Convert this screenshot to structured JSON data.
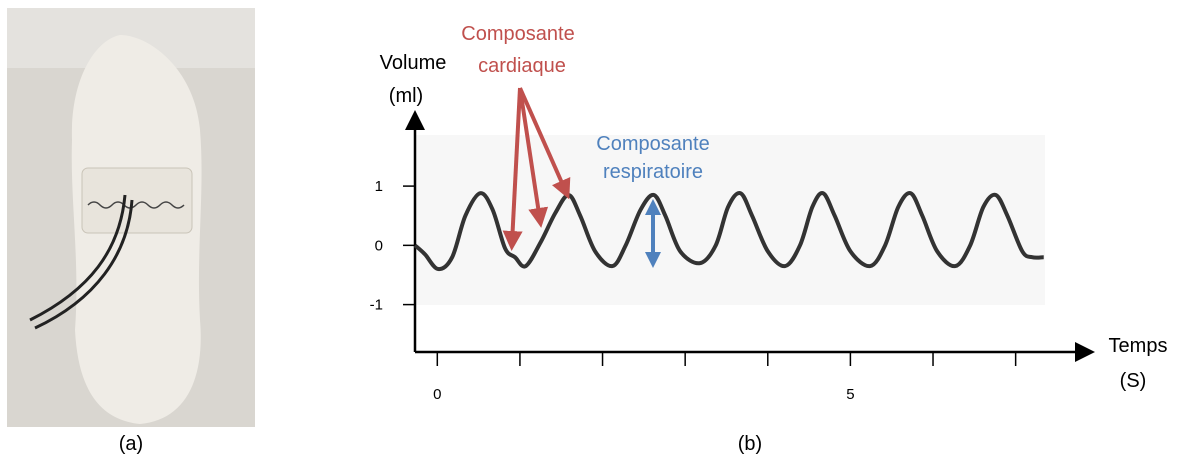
{
  "panel_labels": [
    "(a)",
    "(b)"
  ],
  "chart_data": {
    "type": "line",
    "y_label": [
      "Volume",
      "(ml)"
    ],
    "x_label": [
      "Temps",
      "(S)"
    ],
    "annotations": [
      {
        "text": [
          "Composante",
          "cardiaque"
        ],
        "color": "#c0504d"
      },
      {
        "text": [
          "Composante",
          "respiratoire"
        ],
        "color": "#4f81bd"
      }
    ],
    "x": [
      -0.27,
      -0.15,
      0.01,
      0.18,
      0.34,
      0.52,
      0.67,
      0.82,
      0.94,
      1.07,
      1.25,
      1.43,
      1.59,
      1.73,
      1.91,
      2.12,
      2.28,
      2.46,
      2.62,
      2.76,
      2.94,
      3.18,
      3.37,
      3.52,
      3.67,
      3.81,
      4.0,
      4.21,
      4.39,
      4.54,
      4.67,
      4.81,
      5.0,
      5.24,
      5.42,
      5.58,
      5.73,
      5.87,
      6.05,
      6.27,
      6.45,
      6.61,
      6.76,
      6.9,
      7.08,
      7.2,
      7.34
    ],
    "series": [
      {
        "color": "#333333",
        "values": [
          0.0,
          -0.15,
          -0.4,
          -0.2,
          0.5,
          0.88,
          0.6,
          -0.05,
          -0.2,
          -0.35,
          0.05,
          0.55,
          0.85,
          0.5,
          -0.1,
          -0.35,
          0.0,
          0.6,
          0.85,
          0.5,
          -0.1,
          -0.3,
          0.0,
          0.65,
          0.88,
          0.5,
          -0.1,
          -0.35,
          0.0,
          0.65,
          0.88,
          0.5,
          -0.1,
          -0.35,
          0.0,
          0.65,
          0.88,
          0.5,
          -0.1,
          -0.35,
          0.0,
          0.65,
          0.85,
          0.5,
          -0.1,
          -0.2,
          -0.2
        ]
      }
    ],
    "xlim": [
      -0.27,
      7.9
    ],
    "ylim": [
      -1.8,
      2.2
    ],
    "xticks": [
      0,
      5
    ],
    "x_minor_ticks": [
      1,
      2,
      3,
      4,
      6,
      7
    ],
    "yticks": [
      1,
      0,
      -1
    ]
  }
}
